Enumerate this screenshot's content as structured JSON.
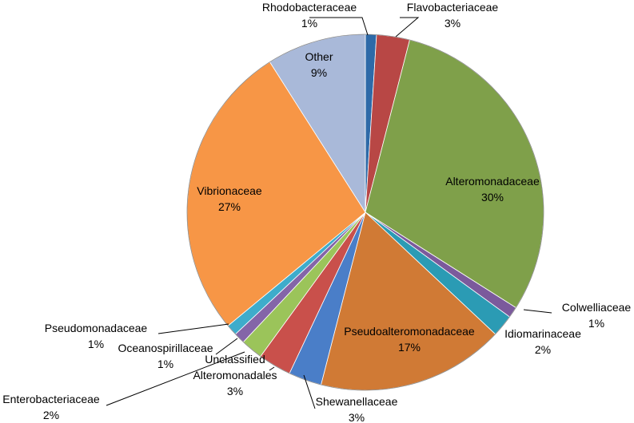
{
  "chart_data": {
    "type": "pie",
    "slices": [
      {
        "name": "Rhodobacteraceae",
        "value": 1,
        "label": "1%",
        "color": "#2e6aa8"
      },
      {
        "name": "Flavobacteriaceae",
        "value": 3,
        "label": "3%",
        "color": "#b84745"
      },
      {
        "name": "Alteromonadaceae",
        "value": 30,
        "label": "30%",
        "color": "#7fa04a"
      },
      {
        "name": "Colwelliaceae",
        "value": 1,
        "label": "1%",
        "color": "#7b5a9c"
      },
      {
        "name": "Idiomarinaceae",
        "value": 2,
        "label": "2%",
        "color": "#2b9bb4"
      },
      {
        "name": "Pseudoalteromonadaceae",
        "value": 17,
        "label": "17%",
        "color": "#d07a35"
      },
      {
        "name": "Shewanellaceae",
        "value": 3,
        "label": "3%",
        "color": "#4a7ec8"
      },
      {
        "name": "Unclassified Alteromonadales",
        "value": 3,
        "label": "3%",
        "color": "#c9504b"
      },
      {
        "name": "Enterobacteriaceae",
        "value": 2,
        "label": "2%",
        "color": "#9bc45a"
      },
      {
        "name": "Oceanospirillaceae",
        "value": 1,
        "label": "1%",
        "color": "#8465a8"
      },
      {
        "name": "Pseudomonadaceae",
        "value": 1,
        "label": "1%",
        "color": "#3eaccb"
      },
      {
        "name": "Vibrionaceae",
        "value": 27,
        "label": "27%",
        "color": "#f79646"
      },
      {
        "name": "Other",
        "value": 9,
        "label": "9%",
        "color": "#a9b9d9"
      }
    ],
    "start_angle": "12 o'clock",
    "direction": "clockwise",
    "label_positions": {
      "Rhodobacteraceae": "outside-top",
      "Flavobacteriaceae": "outside-top",
      "Alteromonadaceae": "inside",
      "Colwelliaceae": "outside-right",
      "Idiomarinaceae": "outside-right",
      "Pseudoalteromonadaceae": "inside",
      "Shewanellaceae": "outside-bottom",
      "Unclassified Alteromonadales": "outside-bottom",
      "Enterobacteriaceae": "outside-left",
      "Oceanospirillaceae": "outside-left",
      "Pseudomonadaceae": "outside-left",
      "Vibrionaceae": "inside",
      "Other": "inside"
    }
  }
}
